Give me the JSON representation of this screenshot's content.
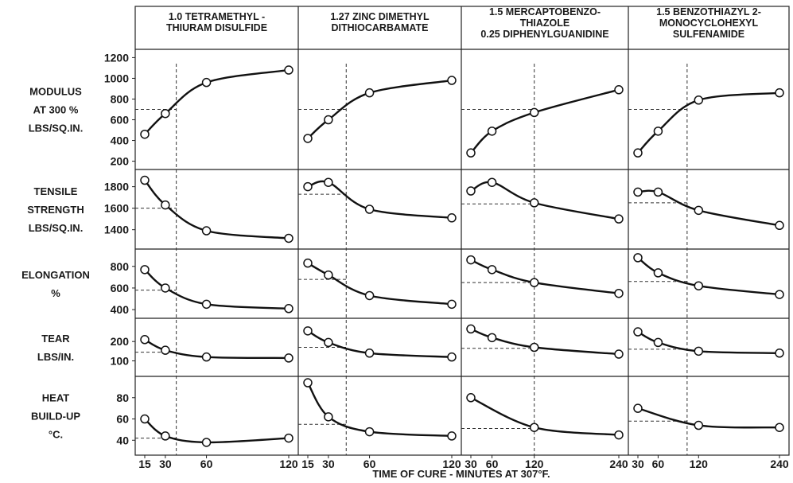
{
  "x_axis_label": "TIME OF CURE - MINUTES AT 307°F.",
  "columns": [
    {
      "header": [
        "1.0 TETRAMETHYL -",
        "THIURAM DISULFIDE"
      ],
      "x_ticks": [
        "15",
        "30",
        "60",
        "120"
      ],
      "x_values": [
        15,
        30,
        60,
        120
      ],
      "optimum_cure_minutes": 38
    },
    {
      "header": [
        "1.27 ZINC DIMETHYL",
        "DITHIOCARBAMATE"
      ],
      "x_ticks": [
        "15",
        "30",
        "60",
        "120"
      ],
      "x_values": [
        15,
        30,
        60,
        120
      ],
      "optimum_cure_minutes": 43
    },
    {
      "header": [
        "1.5 MERCAPTOBENZO-",
        "THIAZOLE",
        "0.25 DIPHENYLGUANIDINE"
      ],
      "x_ticks": [
        "30",
        "60",
        "120",
        "240"
      ],
      "x_values": [
        30,
        60,
        120,
        240
      ],
      "optimum_cure_minutes": 120
    },
    {
      "header": [
        "1.5 BENZOTHIAZYL 2-",
        "MONOCYCLOHEXYL",
        "SULFENAMIDE"
      ],
      "x_ticks": [
        "30",
        "60",
        "120",
        "240"
      ],
      "x_values": [
        30,
        60,
        120,
        240
      ],
      "optimum_cure_minutes": 103
    }
  ],
  "chart_data": {
    "type": "line",
    "x_scale": "linear",
    "x_axis_label": "TIME OF CURE - MINUTES AT 307°F.",
    "compounds": [
      "1.0 TETRAMETHYL - THIURAM DISULFIDE",
      "1.27 ZINC DIMETHYL DITHIOCARBAMATE",
      "1.5 MERCAPTOBENZO- THIAZOLE 0.25 DIPHENYLGUANIDINE",
      "1.5 BENZOTHIAZYL 2- MONOCYCLOHEXYL SULFENAMIDE"
    ],
    "x": [
      [
        15,
        30,
        60,
        120
      ],
      [
        15,
        30,
        60,
        120
      ],
      [
        30,
        60,
        120,
        240
      ],
      [
        30,
        60,
        120,
        240
      ]
    ],
    "rows": [
      {
        "label": [
          "MODULUS",
          "AT 300 %",
          "LBS/SQ.IN."
        ],
        "ylim": [
          120,
          1280
        ],
        "ticks": [
          200,
          400,
          600,
          800,
          1000,
          1200
        ],
        "series": [
          [
            460,
            660,
            960,
            1080
          ],
          [
            420,
            600,
            860,
            980
          ],
          [
            280,
            490,
            670,
            890
          ],
          [
            280,
            490,
            790,
            860
          ]
        ],
        "reference": [
          700,
          700,
          700,
          700
        ]
      },
      {
        "label": [
          "TENSILE",
          "STRENGTH",
          "LBS/SQ.IN."
        ],
        "ylim": [
          1220,
          1960
        ],
        "ticks": [
          1400,
          1600,
          1800
        ],
        "series": [
          [
            1860,
            1630,
            1390,
            1320
          ],
          [
            1800,
            1840,
            1590,
            1510
          ],
          [
            1760,
            1840,
            1650,
            1500
          ],
          [
            1750,
            1750,
            1580,
            1440
          ]
        ],
        "reference": [
          1600,
          1730,
          1640,
          1650
        ]
      },
      {
        "label": [
          "ELONGATION",
          "%"
        ],
        "ylim": [
          320,
          960
        ],
        "ticks": [
          400,
          600,
          800
        ],
        "series": [
          [
            770,
            600,
            450,
            410
          ],
          [
            830,
            720,
            530,
            450
          ],
          [
            860,
            770,
            650,
            550
          ],
          [
            880,
            740,
            620,
            540
          ]
        ],
        "reference": [
          580,
          680,
          650,
          660
        ]
      },
      {
        "label": [
          "TEAR",
          "LBS/IN."
        ],
        "ylim": [
          20,
          320
        ],
        "ticks": [
          100,
          200
        ],
        "series": [
          [
            210,
            155,
            120,
            115
          ],
          [
            255,
            195,
            140,
            120
          ],
          [
            265,
            220,
            170,
            135
          ],
          [
            250,
            195,
            150,
            140
          ]
        ],
        "reference": [
          145,
          170,
          165,
          160
        ]
      },
      {
        "label": [
          "HEAT",
          "BUILD-UP",
          "°C."
        ],
        "ylim": [
          26,
          100
        ],
        "ticks": [
          40,
          60,
          80
        ],
        "series": [
          [
            60,
            44,
            38,
            42
          ],
          [
            94,
            62,
            48,
            44
          ],
          [
            80,
            null,
            52,
            45
          ],
          [
            70,
            null,
            54,
            52
          ]
        ],
        "reference": [
          42,
          55,
          51,
          58
        ]
      }
    ]
  }
}
